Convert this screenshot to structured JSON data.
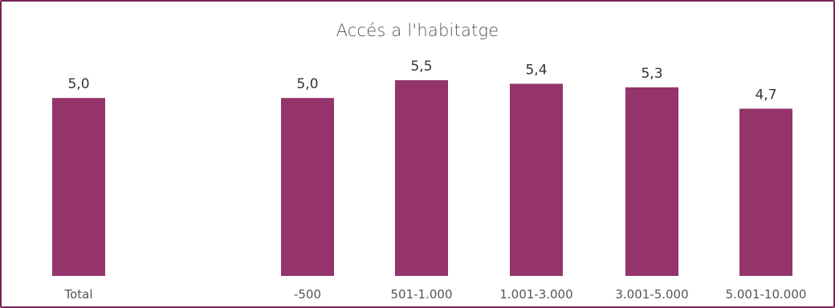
{
  "chart_data": {
    "type": "bar",
    "title": "Accés a l'habitatge",
    "categories": [
      "Total",
      "-500",
      "501-1.000",
      "1.001-3.000",
      "3.001-5.000",
      "5.001-10.000"
    ],
    "values": [
      5.0,
      5.0,
      5.5,
      5.4,
      5.3,
      4.7
    ],
    "value_labels": [
      "5,0",
      "5,0",
      "5,5",
      "5,4",
      "5,3",
      "4,7"
    ],
    "xlabel": "",
    "ylabel": "",
    "ylim": [
      0,
      5.5
    ],
    "grid": false,
    "legend": "none",
    "bar_color": "#94346a",
    "frame_color": "#7a2458"
  }
}
